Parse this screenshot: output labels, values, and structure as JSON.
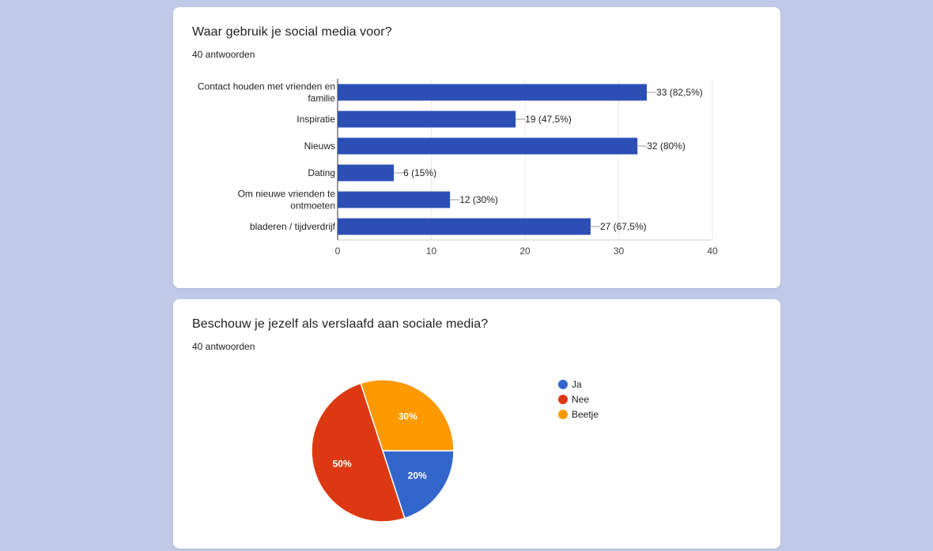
{
  "questions": [
    {
      "title": "Waar gebruik je social media voor?",
      "responses": "40 antwoorden"
    },
    {
      "title": "Beschouw je jezelf als verslaafd aan sociale media?",
      "responses": "40 antwoorden"
    }
  ],
  "colors": {
    "bar": "#2b4fb5",
    "ja": "#3366cc",
    "nee": "#dc3912",
    "beetje": "#ff9900"
  },
  "chart_data": [
    {
      "type": "bar",
      "orientation": "horizontal",
      "title": "Waar gebruik je social media voor?",
      "categories": [
        [
          "Contact houden met vrienden en",
          "familie"
        ],
        [
          "Inspiratie"
        ],
        [
          "Nieuws"
        ],
        [
          "Dating"
        ],
        [
          "Om nieuwe vrienden te",
          "ontmoeten"
        ],
        [
          "bladeren / tijdverdrijf"
        ]
      ],
      "values": [
        33,
        19,
        32,
        6,
        12,
        27
      ],
      "data_labels": [
        "33 (82,5%)",
        "19 (47,5%)",
        "32 (80%)",
        "6 (15%)",
        "12 (30%)",
        "27 (67,5%)"
      ],
      "xlim": [
        0,
        40
      ],
      "xticks": [
        "0",
        "10",
        "20",
        "30",
        "40"
      ],
      "grid": true
    },
    {
      "type": "pie",
      "title": "Beschouw je jezelf als verslaafd aan sociale media?",
      "labels": [
        "Ja",
        "Nee",
        "Beetje"
      ],
      "values": [
        20,
        50,
        30
      ],
      "slice_labels": [
        "20%",
        "50%",
        "30%"
      ],
      "legend": "right"
    }
  ]
}
